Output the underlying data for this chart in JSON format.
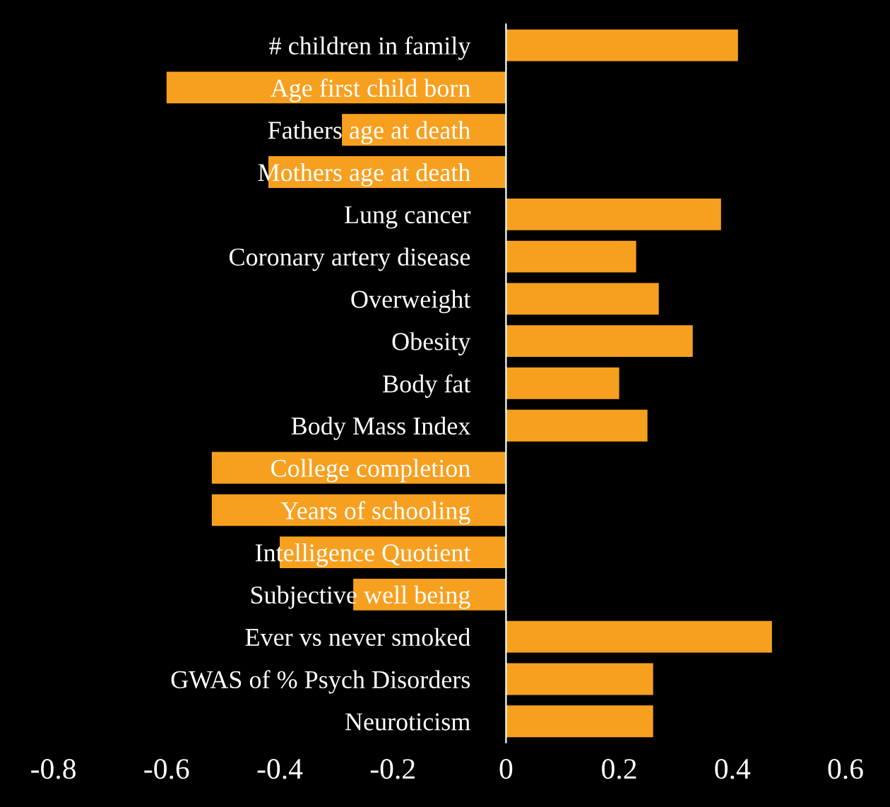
{
  "chart_data": {
    "type": "bar",
    "orientation": "horizontal",
    "categories": [
      "# children in family",
      "Age first child born",
      "Fathers age at death",
      "Mothers age at death",
      "Lung cancer",
      "Coronary artery disease",
      "Overweight",
      "Obesity",
      "Body fat",
      "Body Mass Index",
      "College completion",
      "Years of schooling",
      "Intelligence Quotient",
      "Subjective well being",
      "Ever vs never smoked",
      "GWAS of % Psych Disorders",
      "Neuroticism"
    ],
    "values": [
      0.41,
      -0.6,
      -0.29,
      -0.42,
      0.38,
      0.23,
      0.27,
      0.33,
      0.2,
      0.25,
      -0.52,
      -0.52,
      -0.4,
      -0.27,
      0.47,
      0.26,
      0.26
    ],
    "color": "#f7a020",
    "xlim": [
      -0.8,
      0.6
    ],
    "xticks": [
      -0.8,
      -0.6,
      -0.4,
      -0.2,
      0,
      0.2,
      0.4,
      0.6
    ],
    "grid": false,
    "legend": false
  }
}
